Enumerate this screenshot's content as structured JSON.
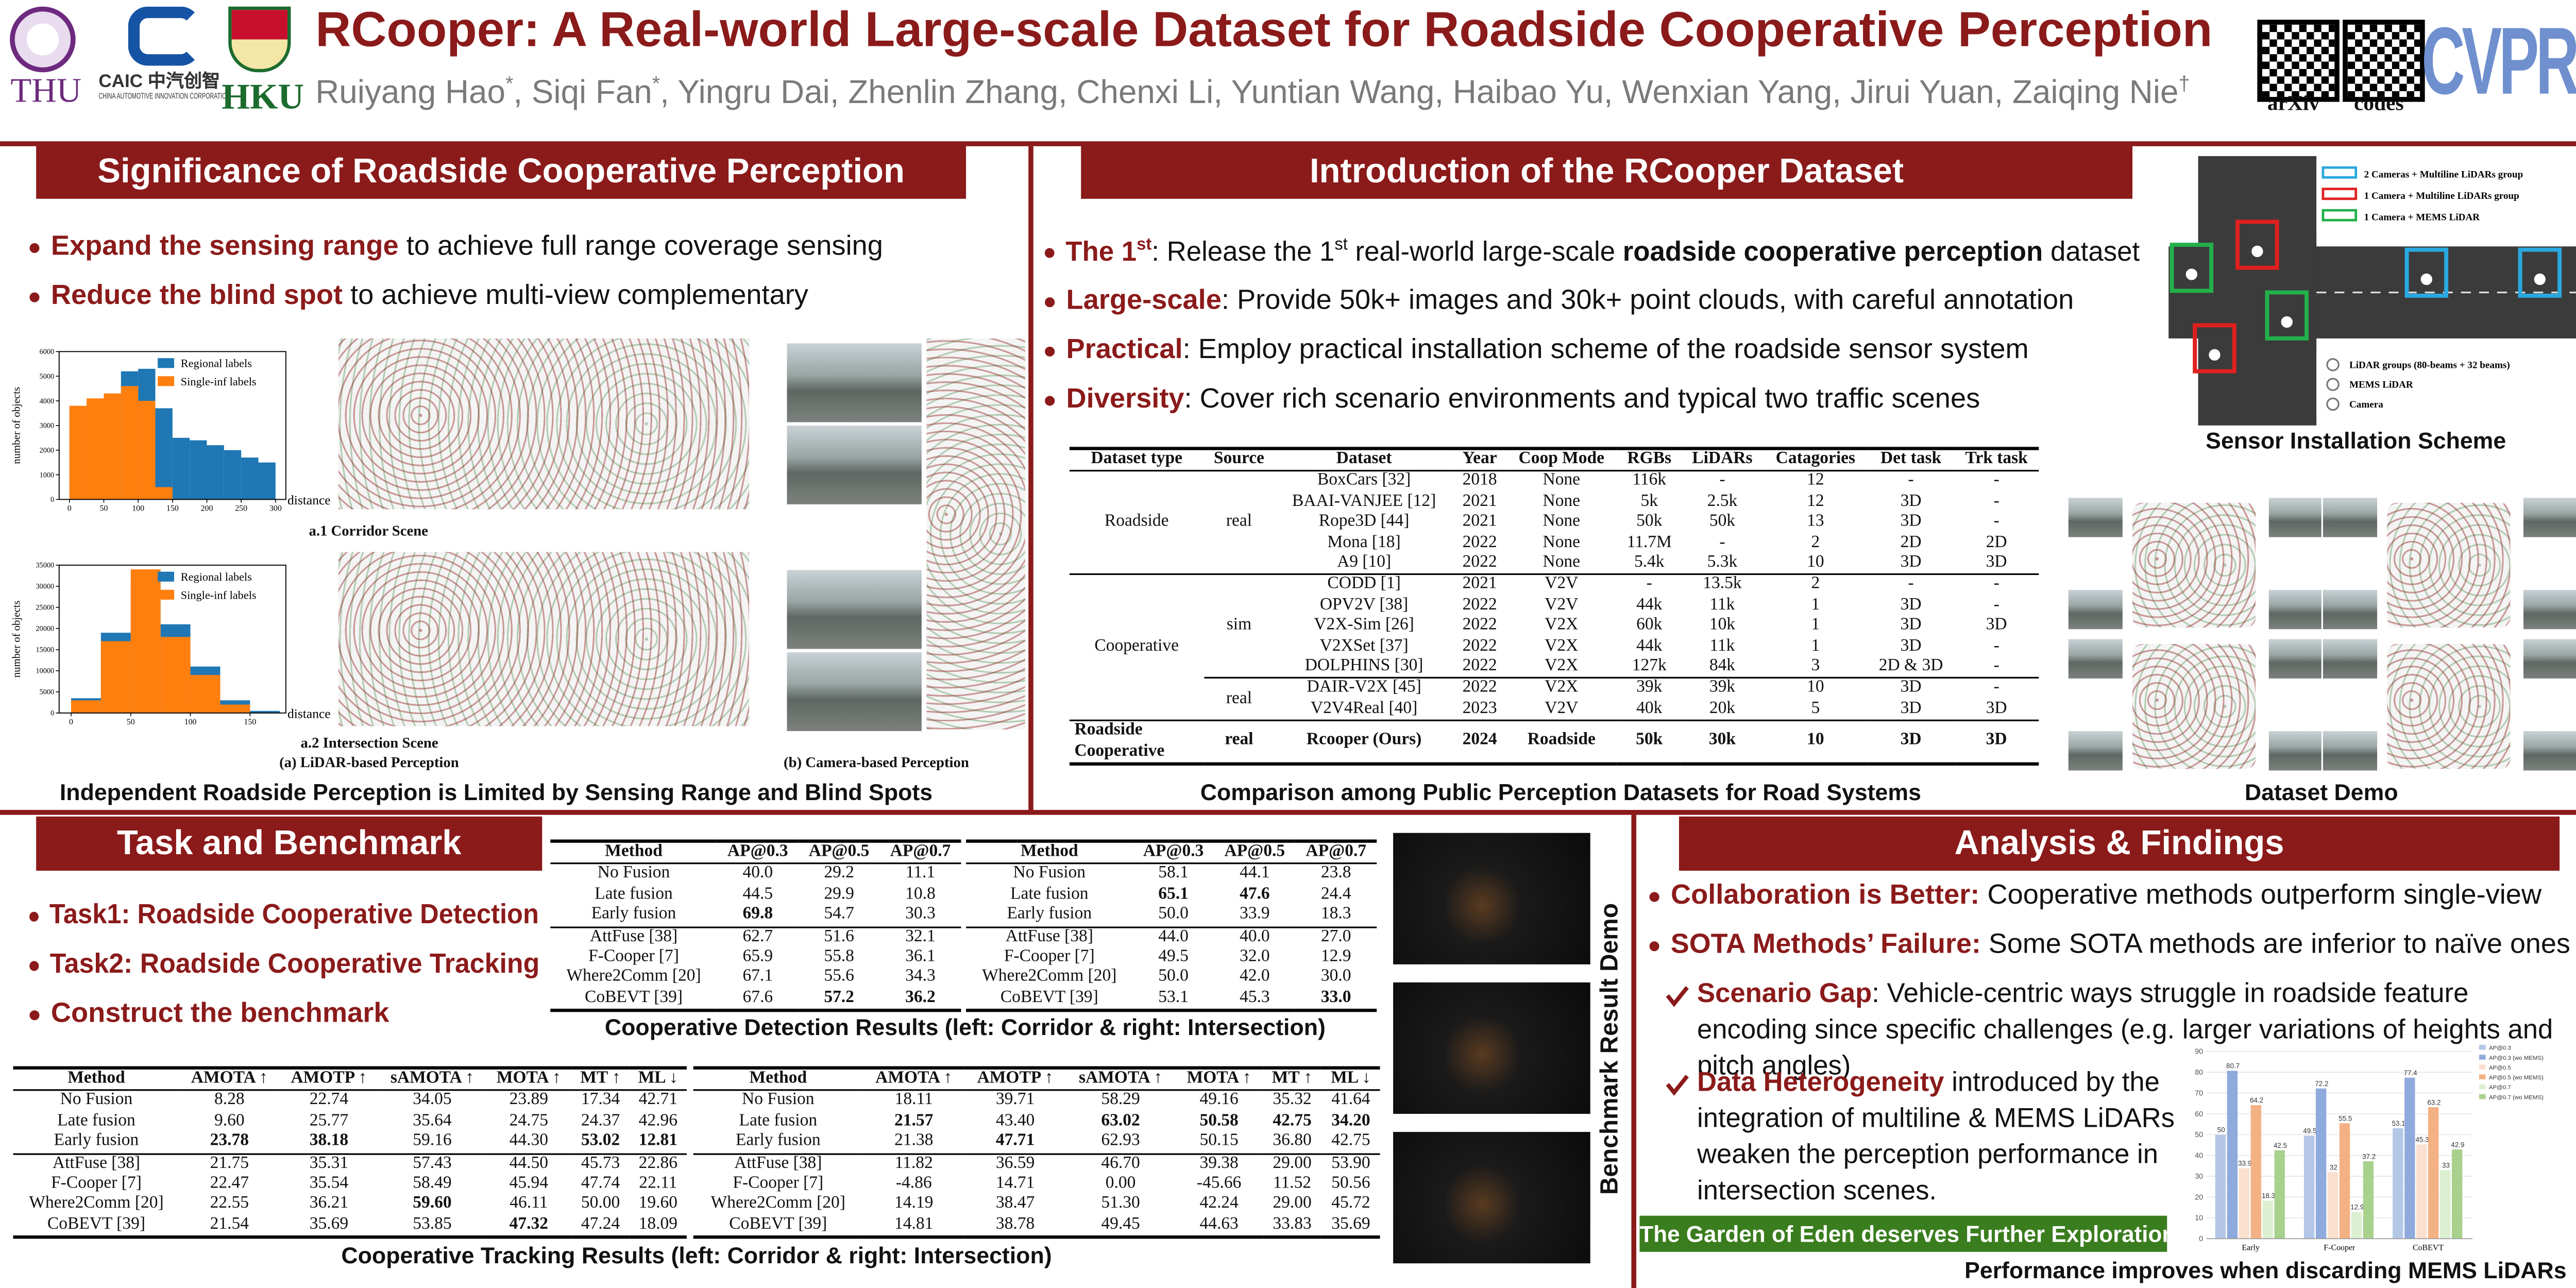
{
  "header": {
    "title": "RCooper: A Real-world Large-scale Dataset for Roadside Cooperative Perception",
    "authors": [
      {
        "text": "Ruiyang Hao"
      },
      {
        "text": "*",
        "style": "sup"
      },
      {
        "text": ", Siqi Fan"
      },
      {
        "text": "*",
        "style": "sup"
      },
      {
        "text": ", Yingru Dai, Zhenlin Zhang, Chenxi Li, Yuntian Wang, Haibao Yu, Wenxian Yang, Jirui Yuan, Zaiqing Nie"
      },
      {
        "text": "†",
        "style": "sup"
      }
    ],
    "logos": {
      "thu": "THU",
      "caic": "CAIC 中汽创智",
      "caic_sub": "CHINA AUTOMOTIVE INNOVATION CORPORATION",
      "hku": "HKU",
      "venue": "CVPR"
    },
    "qr": [
      "arXiv",
      "codes"
    ]
  },
  "significance": {
    "title": "Significance of Roadside Cooperative Perception",
    "bullets": [
      [
        {
          "text": "Expand the sensing range",
          "style": "em"
        },
        {
          "text": " to achieve full range coverage sensing"
        }
      ],
      [
        {
          "text": "Reduce the blind spot",
          "style": "em"
        },
        {
          "text": " to achieve multi-view complementary"
        }
      ]
    ],
    "histograms": [
      {
        "xlabel": "distance",
        "ylabel": "number of objects",
        "bins": [
          0,
          25,
          50,
          75,
          100,
          125,
          150,
          175,
          200,
          225,
          250,
          275,
          300
        ],
        "series": [
          {
            "name": "Regional labels",
            "color": "#1f77b4",
            "values": [
              3600,
              3900,
              4200,
              5200,
              5300,
              3700,
              2500,
              2400,
              2200,
              2000,
              1700,
              1500
            ]
          },
          {
            "name": "Single-inf labels",
            "color": "#ff7f0e",
            "values": [
              3800,
              4100,
              4300,
              4600,
              4000,
              500,
              0,
              0,
              0,
              0,
              0,
              0
            ]
          }
        ],
        "xlim": [
          -15,
          315
        ],
        "ylim": [
          0,
          6000
        ],
        "xticks": [
          0,
          50,
          100,
          150,
          200,
          250,
          300
        ],
        "yticks": [
          0,
          1000,
          2000,
          3000,
          4000,
          5000,
          6000
        ]
      },
      {
        "xlabel": "distance",
        "ylabel": "number of objects",
        "bins": [
          0,
          25,
          50,
          75,
          100,
          125,
          150,
          175
        ],
        "series": [
          {
            "name": "Regional labels",
            "color": "#1f77b4",
            "values": [
              3500,
              19000,
              31000,
              21000,
              11000,
              3000,
              500
            ]
          },
          {
            "name": "Single-inf labels",
            "color": "#ff7f0e",
            "values": [
              3000,
              17000,
              34000,
              18000,
              9000,
              2000,
              0
            ]
          }
        ],
        "xlim": [
          -10,
          180
        ],
        "ylim": [
          0,
          35000
        ],
        "xticks": [
          0,
          50,
          100,
          150
        ],
        "yticks": [
          0,
          5000,
          10000,
          15000,
          20000,
          25000,
          30000,
          35000
        ]
      }
    ],
    "labels": {
      "a1": "a.1 Corridor Scene",
      "a2": "a.2 Intersection Scene",
      "a": "(a) LiDAR-based Perception",
      "b": "(b) Camera-based Perception"
    },
    "caption": "Independent Roadside Perception is Limited by Sensing Range and Blind Spots"
  },
  "introduction": {
    "title": "Introduction of the RCooper Dataset",
    "bullets": [
      [
        {
          "text": "The 1",
          "style": "em"
        },
        {
          "text": "st",
          "style": "em-sup"
        },
        {
          "text": ": Release the 1"
        },
        {
          "text": "st",
          "style": "sup"
        },
        {
          "text": " real-world large-scale "
        },
        {
          "text": "roadside cooperative perception",
          "style": "bold"
        },
        {
          "text": " dataset"
        }
      ],
      [
        {
          "text": "Large-scale",
          "style": "em"
        },
        {
          "text": ": Provide 50k+ images and 30k+ point clouds, with careful annotation"
        }
      ],
      [
        {
          "text": "Practical",
          "style": "em"
        },
        {
          "text": ": Employ practical installation scheme of the roadside sensor system"
        }
      ],
      [
        {
          "text": "Diversity",
          "style": "em"
        },
        {
          "text": ": Cover rich scenario environments and typical two traffic scenes"
        }
      ]
    ],
    "table": {
      "columns": [
        "Dataset type",
        "Source",
        "Dataset",
        "Year",
        "Coop Mode",
        "RGBs",
        "LiDARs",
        "Catagories",
        "Det task",
        "Trk task"
      ],
      "groups": [
        {
          "label": "Roadside",
          "sources": [
            {
              "label": "real",
              "rows": [
                [
                  "BoxCars [32]",
                  "2018",
                  "None",
                  "116k",
                  "-",
                  "12",
                  "-",
                  "-"
                ],
                [
                  "BAAI-VANJEE [12]",
                  "2021",
                  "None",
                  "5k",
                  "2.5k",
                  "12",
                  "3D",
                  "-"
                ],
                [
                  "Rope3D [44]",
                  "2021",
                  "None",
                  "50k",
                  "50k",
                  "13",
                  "3D",
                  "-"
                ],
                [
                  "Mona [18]",
                  "2022",
                  "None",
                  "11.7M",
                  "-",
                  "2",
                  "2D",
                  "2D"
                ],
                [
                  "A9 [10]",
                  "2022",
                  "None",
                  "5.4k",
                  "5.3k",
                  "10",
                  "3D",
                  "3D"
                ]
              ]
            }
          ]
        },
        {
          "label": "Cooperative",
          "sources": [
            {
              "label": "sim",
              "rows": [
                [
                  "CODD [1]",
                  "2021",
                  "V2V",
                  "-",
                  "13.5k",
                  "2",
                  "-",
                  "-"
                ],
                [
                  "OPV2V [38]",
                  "2022",
                  "V2V",
                  "44k",
                  "11k",
                  "1",
                  "3D",
                  "-"
                ],
                [
                  "V2X-Sim [26]",
                  "2022",
                  "V2X",
                  "60k",
                  "10k",
                  "1",
                  "3D",
                  "3D"
                ],
                [
                  "V2XSet [37]",
                  "2022",
                  "V2X",
                  "44k",
                  "11k",
                  "1",
                  "3D",
                  "-"
                ],
                [
                  "DOLPHINS [30]",
                  "2022",
                  "V2X",
                  "127k",
                  "84k",
                  "3",
                  "2D & 3D",
                  "-"
                ]
              ]
            },
            {
              "label": "real",
              "rows": [
                [
                  "DAIR-V2X [45]",
                  "2022",
                  "V2X",
                  "39k",
                  "39k",
                  "10",
                  "3D",
                  "-"
                ],
                [
                  "V2V4Real [40]",
                  "2023",
                  "V2V",
                  "40k",
                  "20k",
                  "5",
                  "3D",
                  "3D"
                ]
              ]
            }
          ]
        },
        {
          "label": "Roadside Cooperative",
          "bold": true,
          "sources": [
            {
              "label": "real",
              "rows": [
                [
                  "Rcooper (Ours)",
                  "2024",
                  "Roadside",
                  "50k",
                  "30k",
                  "10",
                  "3D",
                  "3D"
                ]
              ]
            }
          ]
        }
      ]
    },
    "caption": "Comparison among Public Perception Datasets for Road Systems"
  },
  "sensor_scheme": {
    "legend": [
      {
        "label": "2 Cameras + Multiline LiDARs group",
        "color": "#29a8e0"
      },
      {
        "label": "1 Camera + Multiline LiDARs group",
        "color": "#e02020"
      },
      {
        "label": "1 Camera + MEMS LiDAR",
        "color": "#22b04a"
      }
    ],
    "symbols": [
      "LiDAR groups (80-beams + 32 beams)",
      "MEMS LiDAR",
      "Camera"
    ],
    "caption": "Sensor Installation Scheme"
  },
  "dataset_demo": {
    "caption": "Dataset Demo"
  },
  "task": {
    "title": "Task and Benchmark",
    "bullets": [
      [
        {
          "text": "Task1: Roadside Cooperative Detection",
          "style": "em"
        }
      ],
      [
        {
          "text": "Task2: Roadside Cooperative Tracking",
          "style": "em"
        }
      ],
      [
        {
          "text": "Construct the benchmark",
          "style": "em"
        }
      ]
    ],
    "detection": {
      "columns": [
        "Method",
        "AP@0.3",
        "AP@0.5",
        "AP@0.7"
      ],
      "left": [
        [
          "No Fusion",
          "40.0",
          "29.2",
          "11.1"
        ],
        [
          "Late fusion",
          "44.5",
          "29.9",
          "10.8"
        ],
        [
          "Early fusion",
          {
            "text": "69.8",
            "bold": true
          },
          "54.7",
          "30.3"
        ],
        [
          "AttFuse [38]",
          "62.7",
          "51.6",
          "32.1"
        ],
        [
          "F-Cooper [7]",
          "65.9",
          "55.8",
          "36.1"
        ],
        [
          "Where2Comm [20]",
          "67.1",
          "55.6",
          "34.3"
        ],
        [
          "CoBEVT [39]",
          "67.6",
          {
            "text": "57.2",
            "bold": true
          },
          {
            "text": "36.2",
            "bold": true
          }
        ]
      ],
      "right": [
        [
          "No Fusion",
          "58.1",
          "44.1",
          "23.8"
        ],
        [
          "Late fusion",
          {
            "text": "65.1",
            "bold": true
          },
          {
            "text": "47.6",
            "bold": true
          },
          "24.4"
        ],
        [
          "Early fusion",
          "50.0",
          "33.9",
          "18.3"
        ],
        [
          "AttFuse [38]",
          "44.0",
          "40.0",
          "27.0"
        ],
        [
          "F-Cooper [7]",
          "49.5",
          "32.0",
          "12.9"
        ],
        [
          "Where2Comm [20]",
          "50.0",
          "42.0",
          "30.0"
        ],
        [
          "CoBEVT [39]",
          "53.1",
          "45.3",
          {
            "text": "33.0",
            "bold": true
          }
        ]
      ],
      "caption": "Cooperative Detection Results (left: Corridor & right: Intersection)"
    },
    "tracking": {
      "columns": [
        "Method",
        "AMOTA ↑",
        "AMOTP ↑",
        "sAMOTA ↑",
        "MOTA ↑",
        "MT ↑",
        "ML ↓"
      ],
      "left": [
        [
          "No Fusion",
          "8.28",
          "22.74",
          "34.05",
          "23.89",
          "17.34",
          "42.71"
        ],
        [
          "Late fusion",
          "9.60",
          "25.77",
          "35.64",
          "24.75",
          "24.37",
          "42.96"
        ],
        [
          "Early fusion",
          {
            "text": "23.78",
            "bold": true
          },
          {
            "text": "38.18",
            "bold": true
          },
          "59.16",
          "44.30",
          {
            "text": "53.02",
            "bold": true
          },
          {
            "text": "12.81",
            "bold": true
          }
        ],
        [
          "AttFuse [38]",
          "21.75",
          "35.31",
          "57.43",
          "44.50",
          "45.73",
          "22.86"
        ],
        [
          "F-Cooper [7]",
          "22.47",
          "35.54",
          "58.49",
          "45.94",
          "47.74",
          "22.11"
        ],
        [
          "Where2Comm [20]",
          "22.55",
          "36.21",
          {
            "text": "59.60",
            "bold": true
          },
          "46.11",
          "50.00",
          "19.60"
        ],
        [
          "CoBEVT [39]",
          "21.54",
          "35.69",
          "53.85",
          {
            "text": "47.32",
            "bold": true
          },
          "47.24",
          "18.09"
        ]
      ],
      "right": [
        [
          "No Fusion",
          "18.11",
          "39.71",
          "58.29",
          "49.16",
          "35.32",
          "41.64"
        ],
        [
          "Late fusion",
          {
            "text": "21.57",
            "bold": true
          },
          "43.40",
          {
            "text": "63.02",
            "bold": true
          },
          {
            "text": "50.58",
            "bold": true
          },
          {
            "text": "42.75",
            "bold": true
          },
          {
            "text": "34.20",
            "bold": true
          }
        ],
        [
          "Early fusion",
          "21.38",
          {
            "text": "47.71",
            "bold": true
          },
          "62.93",
          "50.15",
          "36.80",
          "42.75"
        ],
        [
          "AttFuse [38]",
          "11.82",
          "36.59",
          "46.70",
          "39.38",
          "29.00",
          "53.90"
        ],
        [
          "F-Cooper [7]",
          "-4.86",
          "14.71",
          "0.00",
          "-45.66",
          "11.52",
          "50.56"
        ],
        [
          "Where2Comm [20]",
          "14.19",
          "38.47",
          "51.30",
          "42.24",
          "29.00",
          "45.72"
        ],
        [
          "CoBEVT [39]",
          "14.81",
          "38.78",
          "49.45",
          "44.63",
          "33.83",
          "35.69"
        ]
      ],
      "caption": "Cooperative Tracking Results (left: Corridor & right: Intersection)"
    },
    "demo_label": "Benchmark Result Demo"
  },
  "analysis": {
    "title": "Analysis & Findings",
    "bullets": [
      [
        {
          "text": "Collaboration is Better:",
          "style": "em"
        },
        {
          "text": " Cooperative methods outperform single-view"
        }
      ],
      [
        {
          "text": "SOTA Methods’ Failure:",
          "style": "em"
        },
        {
          "text": " Some SOTA methods are inferior to naïve ones"
        }
      ]
    ],
    "sub_bullets": [
      [
        {
          "text": "Scenario Gap",
          "style": "em"
        },
        {
          "text": ": Vehicle-centric ways struggle in roadside feature encoding since specific challenges (e.g. larger variations of heights and pitch angles)"
        }
      ],
      [
        {
          "text": "Data Heterogeneity",
          "style": "em"
        },
        {
          "text": " introduced by the integration of multiline & MEMS LiDARs weaken the perception performance in intersection scenes."
        }
      ]
    ],
    "banner": "The Garden of Eden deserves Further Exploration",
    "chart": {
      "type": "bar",
      "categories": [
        "Early",
        "F-Cooper",
        "CoBEVT"
      ],
      "series": [
        {
          "name": "AP@0.3",
          "color": "#b4c7e7",
          "values": [
            50,
            49.5,
            53.1
          ]
        },
        {
          "name": "AP@0.3 (wo MEMS)",
          "color": "#8faadc",
          "values": [
            80.7,
            72.2,
            77.4
          ]
        },
        {
          "name": "AP@0.5",
          "color": "#fbe0cf",
          "values": [
            33.9,
            32,
            45.3
          ]
        },
        {
          "name": "AP@0.5 (wo MEMS)",
          "color": "#f4b183",
          "values": [
            64.2,
            55.5,
            63.2
          ]
        },
        {
          "name": "AP@0.7",
          "color": "#dcefd0",
          "values": [
            18.3,
            12.9,
            33
          ]
        },
        {
          "name": "AP@0.7 (wo MEMS)",
          "color": "#a9d18e",
          "values": [
            42.5,
            37.2,
            42.9
          ]
        }
      ],
      "ylim": [
        0,
        90
      ],
      "yticks": [
        0,
        10,
        20,
        30,
        40,
        50,
        60,
        70,
        80,
        90
      ],
      "grid": true
    },
    "caption": "Performance improves when discarding MEMS LiDARs"
  }
}
